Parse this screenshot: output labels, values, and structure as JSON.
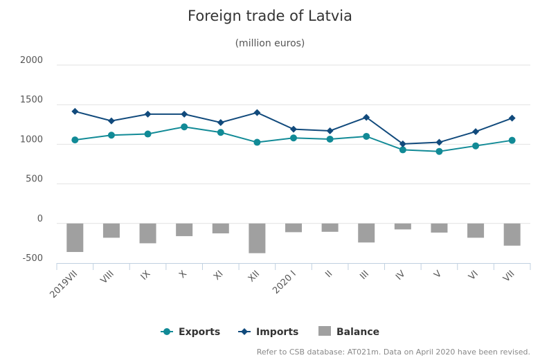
{
  "chart_data": {
    "type": "bar",
    "title": "Foreign trade of Latvia",
    "subtitle": "(million euros)",
    "categories": [
      "2019VII",
      "VIII",
      "IX",
      "X",
      "XI",
      "XII",
      "2020 I",
      "II",
      "III",
      "IV",
      "V",
      "VI",
      "VII"
    ],
    "series": [
      {
        "name": "Exports",
        "type": "line",
        "color": "#118a96",
        "marker": "circle",
        "values": [
          1055,
          1115,
          1130,
          1220,
          1150,
          1025,
          1080,
          1065,
          1100,
          930,
          910,
          980,
          1050
        ]
      },
      {
        "name": "Imports",
        "type": "line",
        "color": "#114a7c",
        "marker": "diamond",
        "values": [
          1415,
          1295,
          1380,
          1380,
          1275,
          1400,
          1190,
          1170,
          1340,
          1005,
          1025,
          1160,
          1330
        ]
      },
      {
        "name": "Balance",
        "type": "bar",
        "color": "#a0a0a0",
        "values": [
          -360,
          -180,
          -250,
          -160,
          -125,
          -375,
          -110,
          -105,
          -240,
          -75,
          -115,
          -180,
          -280
        ]
      }
    ],
    "yaxis": {
      "min": -500,
      "max": 2000,
      "ticks": [
        -500,
        0,
        500,
        1000,
        1500,
        2000
      ]
    },
    "grid": true,
    "legend_position": "bottom-center"
  },
  "credits": "Refer to CSB database: AT021m. Data on April 2020 have been revised."
}
